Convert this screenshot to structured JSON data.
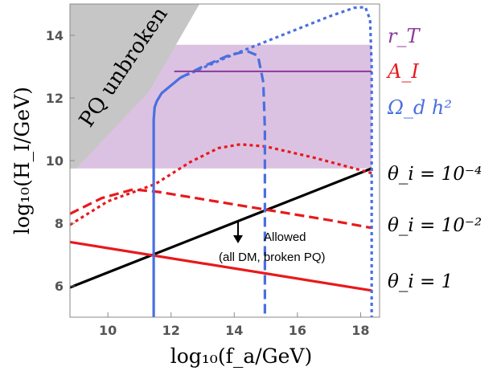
{
  "chart_data": {
    "type": "line",
    "title": "",
    "xlabel": "log₁₀(f_a/GeV)",
    "ylabel": "log₁₀(H_I/GeV)",
    "xlim": [
      8.8,
      18.6
    ],
    "ylim": [
      5.0,
      15.0
    ],
    "xticks": [
      10,
      12,
      14,
      16,
      18
    ],
    "yticks": [
      6,
      8,
      10,
      12,
      14
    ],
    "xtick_labels": [
      "10",
      "12",
      "14",
      "16",
      "18"
    ],
    "ytick_labels": [
      "6",
      "8",
      "10",
      "12",
      "14"
    ],
    "colors": {
      "rT": "#8a3a9a",
      "AI": "#e8191b",
      "omega": "#4a6fe0",
      "theta": "#000000",
      "shade_pq": "#c6c6c6",
      "shade_rT": "#dcc2e2"
    },
    "regions": {
      "pq_unbroken": {
        "label": "PQ unbroken",
        "polygon": [
          [
            8.8,
            9.75
          ],
          [
            8.8,
            15.0
          ],
          [
            12.9,
            15.0
          ],
          [
            11.3,
            12.2
          ],
          [
            9.0,
            9.75
          ]
        ]
      },
      "rT_excluded": {
        "ylim": [
          9.75,
          13.7
        ],
        "xlim": [
          8.8,
          18.35
        ]
      }
    },
    "series": [
      {
        "name": "theta_1",
        "label": "θ_i = 1",
        "style": "solid",
        "color": "#000000",
        "x": [
          8.8,
          18.35
        ],
        "y": [
          5.95,
          9.75
        ]
      },
      {
        "name": "AI_theta1",
        "style": "solid",
        "color": "#e8191b",
        "x": [
          8.8,
          18.35
        ],
        "y": [
          7.4,
          5.85
        ]
      },
      {
        "name": "AI_theta1e-2",
        "style": "dashed",
        "color": "#e8191b",
        "x": [
          8.8,
          9.8,
          10.8,
          11.6,
          12.5,
          14,
          15.5,
          17,
          18.35
        ],
        "y": [
          8.3,
          8.8,
          9.08,
          9.0,
          8.85,
          8.6,
          8.35,
          8.1,
          7.85
        ]
      },
      {
        "name": "AI_theta1e-4",
        "style": "dotted",
        "color": "#e8191b",
        "x": [
          8.8,
          10,
          11.5,
          12.6,
          13.5,
          14.2,
          15,
          16.5,
          18.35
        ],
        "y": [
          7.95,
          8.7,
          9.25,
          9.95,
          10.4,
          10.52,
          10.45,
          10.1,
          9.6
        ]
      },
      {
        "name": "omega_theta1",
        "style": "solid",
        "color": "#4a6fe0",
        "x": [
          11.45,
          11.45,
          11.48,
          11.55,
          11.7,
          12.0,
          12.3
        ],
        "y": [
          5.0,
          11.3,
          11.7,
          11.9,
          12.15,
          12.4,
          12.65
        ]
      },
      {
        "name": "omega_theta1e-2",
        "style": "dashed",
        "color": "#4a6fe0",
        "x": [
          12.3,
          13.0,
          13.8,
          14.4,
          14.75,
          14.92,
          14.97,
          14.97
        ],
        "y": [
          12.65,
          13.0,
          13.35,
          13.5,
          13.35,
          12.5,
          11.0,
          5.0
        ]
      },
      {
        "name": "omega_theta1e-4",
        "style": "dotted",
        "color": "#4a6fe0",
        "x": [
          12.3,
          14.0,
          15.5,
          17.0,
          17.8,
          18.15,
          18.3,
          18.35,
          18.35
        ],
        "y": [
          12.65,
          13.4,
          14.0,
          14.6,
          14.88,
          14.9,
          14.5,
          13.0,
          5.0
        ]
      },
      {
        "name": "rT_bound",
        "style": "solid",
        "color": "#8a3a9a",
        "x": [
          12.1,
          18.35
        ],
        "y": [
          12.85,
          12.85
        ]
      }
    ],
    "legend": {
      "rT": "r_T",
      "AI": "A_I",
      "omega": "Ω_d h²",
      "theta_1e-4": "θ_i = 10⁻⁴",
      "theta_1e-2": "θ_i = 10⁻²",
      "theta_1": "θ_i = 1"
    },
    "annotations": {
      "allowed_line1": "Allowed",
      "allowed_line2": "(all DM, broken PQ)"
    }
  }
}
